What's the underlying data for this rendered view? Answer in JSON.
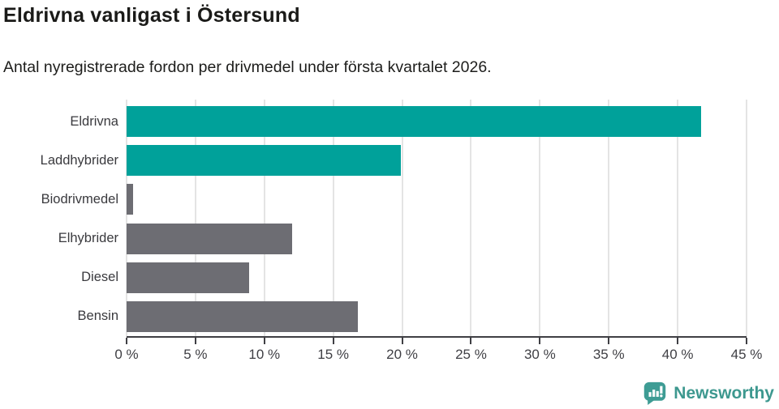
{
  "title": "Eldrivna vanligast i Östersund",
  "subtitle": "Antal nyregistrerade fordon per drivmedel under första kvartalet 2026.",
  "chart_data": {
    "type": "bar",
    "orientation": "horizontal",
    "categories": [
      "Eldrivna",
      "Laddhybrider",
      "Biodrivmedel",
      "Elhybrider",
      "Diesel",
      "Bensin"
    ],
    "values": [
      41.7,
      19.9,
      0.5,
      12.0,
      8.9,
      16.8
    ],
    "unit": "%",
    "bar_colors": [
      "#00a19a",
      "#00a19a",
      "#6d6d73",
      "#6d6d73",
      "#6d6d73",
      "#6d6d73"
    ],
    "highlight_color": "#00a19a",
    "default_color": "#6d6d73",
    "xlim": [
      0,
      45
    ],
    "x_ticks": [
      0,
      5,
      10,
      15,
      20,
      25,
      30,
      35,
      40,
      45
    ],
    "x_tick_labels": [
      "0 %",
      "5 %",
      "10 %",
      "15 %",
      "20 %",
      "25 %",
      "30 %",
      "35 %",
      "40 %",
      "45 %"
    ],
    "grid": "vertical",
    "gridline_color": "#e4e4e4",
    "axis_color": "#3f3f44",
    "legend": "none"
  },
  "footer": {
    "brand": "Newsworthy",
    "brand_color": "#3d988f",
    "logo_icon": "bar-chart-speech-bubble-icon"
  }
}
